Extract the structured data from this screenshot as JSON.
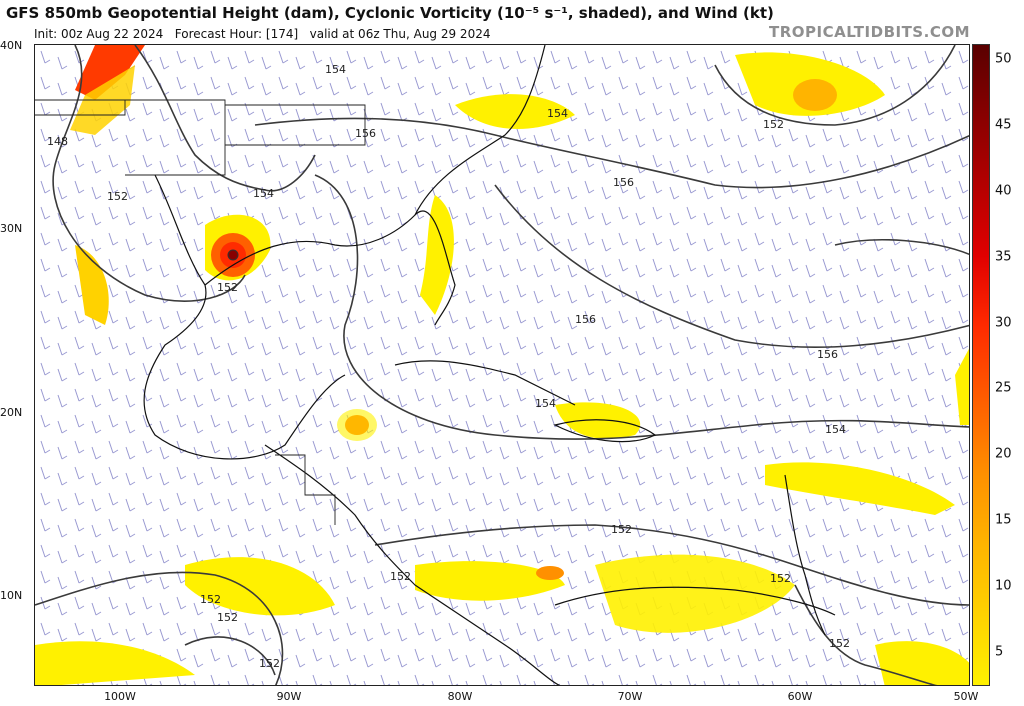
{
  "header": {
    "title": "GFS 850mb Geopotential Height (dam), Cyclonic Vorticity (10⁻⁵ s⁻¹, shaded), and Wind (kt)",
    "init": "Init: 00z Aug 22 2024",
    "forecast_hour": "Forecast Hour: [174]",
    "valid": "valid at 06z Thu, Aug 29 2024",
    "brand": "TROPICALTIDBITS.COM"
  },
  "axes": {
    "lat_labels": [
      "40N",
      "30N",
      "20N",
      "10N"
    ],
    "lon_labels": [
      "100W",
      "90W",
      "80W",
      "70W",
      "60W",
      "50W"
    ]
  },
  "contour_labels": [
    "148",
    "152",
    "154",
    "156",
    "154",
    "156",
    "154",
    "152",
    "152",
    "156",
    "156",
    "154",
    "154",
    "152",
    "152",
    "152",
    "152",
    "152",
    "152",
    "152"
  ],
  "colorbar": {
    "labels": [
      "50",
      "45",
      "40",
      "35",
      "30",
      "25",
      "20",
      "15",
      "10",
      "5"
    ],
    "colors": [
      "#fff100",
      "#ffd200",
      "#ffb400",
      "#ff9000",
      "#ff6000",
      "#ff2b00",
      "#e00000",
      "#b40000",
      "#880000",
      "#5a0000"
    ]
  },
  "colors": {
    "contour": "#3a3a3a",
    "wind_barb": "#8c8cc8",
    "coast": "#111111"
  }
}
